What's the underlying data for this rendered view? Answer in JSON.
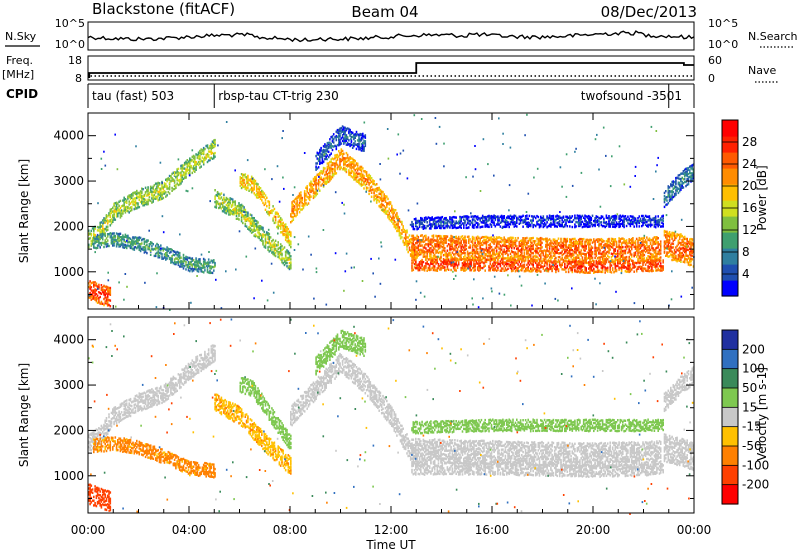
{
  "header": {
    "station": "Blackstone (fitACF)",
    "beam": "Beam 04",
    "date": "08/Dec/2013"
  },
  "sky_panel": {
    "left_label": "N.Sky",
    "right_label": "N.Search",
    "y_ticks": [
      "10^5",
      "10^0"
    ]
  },
  "freq_panel": {
    "left_label_1": "Freq.",
    "left_label_2": "[MHz]",
    "right_label": "Nave",
    "left_ticks": [
      "18",
      "8"
    ],
    "right_ticks": [
      "60",
      "0"
    ],
    "cpid_label": "CPID"
  },
  "cpid_segments": [
    {
      "label": "tau (fast) 503",
      "start": 0.0,
      "end": 5.0
    },
    {
      "label": "rbsp-tau CT-trig 230",
      "start": 5.0,
      "end": 23.0
    },
    {
      "label": "twofsound -3501",
      "start": 23.0,
      "end": 24.0
    }
  ],
  "chart_data": [
    {
      "type": "heatmap",
      "panel": "power",
      "xlabel": "Time UT",
      "ylabel": "Slant Range [km]",
      "x_ticks": [
        "00:00",
        "04:00",
        "08:00",
        "12:00",
        "16:00",
        "20:00",
        "00:00"
      ],
      "x_range_hours": [
        0,
        24
      ],
      "y_ticks": [
        1000,
        2000,
        3000,
        4000
      ],
      "ylim": [
        180,
        4500
      ],
      "colorbar": {
        "label": "Power [dB]",
        "ticks": [
          "4",
          "8",
          "12",
          "16",
          "20",
          "24",
          "28"
        ],
        "colors": [
          "#0000ff",
          "#1f4fb0",
          "#2f7fa0",
          "#3f9f6f",
          "#7fbf3f",
          "#cfdf1f",
          "#ffbf00",
          "#ff8c00",
          "#ff5a00",
          "#ff2000",
          "#ff0000"
        ]
      },
      "bands": [
        {
          "t": [
            0.0,
            0.5,
            1.0,
            2.0,
            3.0,
            4.0,
            5.0
          ],
          "r": [
            1700,
            1900,
            2300,
            2600,
            2800,
            3300,
            3700
          ],
          "w": 180,
          "level": 16
        },
        {
          "t": [
            0.2,
            1.0,
            2.0,
            3.0,
            4.0,
            5.0
          ],
          "r": [
            1650,
            1700,
            1600,
            1400,
            1150,
            1100
          ],
          "w": 140,
          "level": 12
        },
        {
          "t": [
            0.0,
            0.5,
            0.9
          ],
          "r": [
            600,
            500,
            420
          ],
          "w": 220,
          "level": 26
        },
        {
          "t": [
            5.0,
            6.0,
            7.0,
            8.0
          ],
          "r": [
            2600,
            2300,
            1700,
            1200
          ],
          "w": 180,
          "level": 16
        },
        {
          "t": [
            6.0,
            6.5,
            7.0,
            7.5,
            8.0
          ],
          "r": [
            3000,
            2900,
            2500,
            2100,
            1700
          ],
          "w": 160,
          "level": 20
        },
        {
          "t": [
            8.0,
            9.0,
            10.0,
            11.0,
            12.0,
            13.0
          ],
          "r": [
            2300,
            2900,
            3500,
            3000,
            2300,
            1300
          ],
          "w": 220,
          "level": 22
        },
        {
          "t": [
            9.0,
            10.0,
            11.0
          ],
          "r": [
            3400,
            4000,
            3800
          ],
          "w": 180,
          "level": 8
        },
        {
          "t": [
            12.8,
            16.0,
            20.0,
            22.7
          ],
          "r": [
            1550,
            1500,
            1450,
            1500
          ],
          "w": 260,
          "level": 24
        },
        {
          "t": [
            12.8,
            16.0,
            20.0,
            22.8
          ],
          "r": [
            1150,
            1150,
            1100,
            1150
          ],
          "w": 130,
          "level": 26
        },
        {
          "t": [
            12.8,
            16.0,
            20.0,
            22.8
          ],
          "r": [
            2050,
            2100,
            2100,
            2100
          ],
          "w": 120,
          "level": 6
        },
        {
          "t": [
            22.8,
            23.5,
            24.0
          ],
          "r": [
            1600,
            1500,
            1400
          ],
          "w": 300,
          "level": 24
        },
        {
          "t": [
            22.8,
            23.5,
            24.0
          ],
          "r": [
            2600,
            3000,
            3200
          ],
          "w": 180,
          "level": 10
        }
      ]
    },
    {
      "type": "heatmap",
      "panel": "velocity",
      "xlabel": "Time UT",
      "ylabel": "Slant Range [km]",
      "x_ticks": [
        "00:00",
        "04:00",
        "08:00",
        "12:00",
        "16:00",
        "20:00",
        "00:00"
      ],
      "x_range_hours": [
        0,
        24
      ],
      "y_ticks": [
        1000,
        2000,
        3000,
        4000
      ],
      "ylim": [
        180,
        4500
      ],
      "colorbar": {
        "label": "Velocity [m s-1]",
        "ticks": [
          "200",
          "100",
          "50",
          "15",
          "-15",
          "-50",
          "-100",
          "-200"
        ],
        "colors": [
          "#2030a0",
          "#3070c0",
          "#3a8a5a",
          "#7ec850",
          "#c8c8c8",
          "#ffc000",
          "#ff8000",
          "#ff4000",
          "#ff0000"
        ]
      },
      "bands": [
        {
          "t": [
            0.0,
            0.5,
            1.0,
            2.0,
            3.0,
            4.0,
            5.0
          ],
          "r": [
            1700,
            1900,
            2300,
            2600,
            2800,
            3300,
            3700
          ],
          "w": 180,
          "level": 0
        },
        {
          "t": [
            0.2,
            1.0,
            2.0,
            3.0,
            4.0,
            5.0
          ],
          "r": [
            1650,
            1700,
            1600,
            1400,
            1150,
            1100
          ],
          "w": 140,
          "level": -60
        },
        {
          "t": [
            0.0,
            0.5,
            0.9
          ],
          "r": [
            600,
            500,
            420
          ],
          "w": 220,
          "level": -120
        },
        {
          "t": [
            5.0,
            6.0,
            7.0,
            8.0
          ],
          "r": [
            2600,
            2300,
            1700,
            1200
          ],
          "w": 180,
          "level": -40
        },
        {
          "t": [
            6.0,
            6.5,
            7.0,
            7.5,
            8.0
          ],
          "r": [
            3000,
            2900,
            2500,
            2100,
            1700
          ],
          "w": 160,
          "level": 30
        },
        {
          "t": [
            8.0,
            9.0,
            10.0,
            11.0,
            12.0,
            13.0
          ],
          "r": [
            2300,
            2900,
            3500,
            3000,
            2300,
            1300
          ],
          "w": 220,
          "level": 0
        },
        {
          "t": [
            9.0,
            10.0,
            11.0
          ],
          "r": [
            3400,
            4000,
            3800
          ],
          "w": 180,
          "level": 30
        },
        {
          "t": [
            12.8,
            16.0,
            20.0,
            22.7
          ],
          "r": [
            1550,
            1500,
            1450,
            1500
          ],
          "w": 260,
          "level": 0
        },
        {
          "t": [
            12.8,
            16.0,
            20.0,
            22.8
          ],
          "r": [
            1150,
            1150,
            1100,
            1150
          ],
          "w": 130,
          "level": 0
        },
        {
          "t": [
            12.8,
            16.0,
            20.0,
            22.8
          ],
          "r": [
            2050,
            2100,
            2100,
            2100
          ],
          "w": 120,
          "level": 30
        },
        {
          "t": [
            22.8,
            23.5,
            24.0
          ],
          "r": [
            1600,
            1500,
            1400
          ],
          "w": 300,
          "level": 0
        },
        {
          "t": [
            22.8,
            23.5,
            24.0
          ],
          "r": [
            2600,
            3000,
            3200
          ],
          "w": 180,
          "level": 0
        }
      ]
    }
  ]
}
